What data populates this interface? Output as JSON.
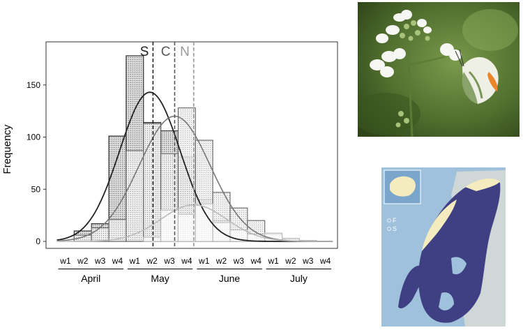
{
  "chart_data": {
    "type": "bar",
    "ylabel": "Frequency",
    "ylim": [
      0,
      180
    ],
    "yticks": [
      0,
      50,
      100,
      150
    ],
    "week_labels": [
      "w1",
      "w2",
      "w3",
      "w4",
      "w1",
      "w2",
      "w3",
      "w4",
      "w1",
      "w2",
      "w3",
      "w4",
      "w1",
      "w2",
      "w3",
      "w4"
    ],
    "months": [
      "April",
      "May",
      "June",
      "July"
    ],
    "series": [
      {
        "name": "S",
        "color": "#222222",
        "values": [
          0,
          10,
          17,
          101,
          178,
          114,
          106,
          81,
          40,
          20,
          9,
          3,
          1,
          0,
          0,
          0
        ],
        "fit": {
          "peak": 143,
          "mean": 5.37,
          "sd": 1.75
        }
      },
      {
        "name": "C",
        "color": "#777777",
        "values": [
          0,
          6,
          13,
          21,
          87,
          113,
          84,
          128,
          97,
          47,
          32,
          20,
          7,
          2,
          0,
          0
        ],
        "fit": {
          "peak": 120,
          "mean": 6.8,
          "sd": 2.05
        }
      },
      {
        "name": "N",
        "color": "#bbbbbb",
        "values": [
          0,
          0,
          0,
          0,
          0,
          4,
          30,
          26,
          36,
          18,
          11,
          7,
          8,
          3,
          1,
          0
        ],
        "fit": {
          "peak": 35,
          "mean": 7.9,
          "sd": 1.9
        }
      }
    ],
    "means": [
      {
        "label": "S",
        "week_index": 5.55,
        "color": "#222222"
      },
      {
        "label": "C",
        "week_index": 6.8,
        "color": "#555555"
      },
      {
        "label": "N",
        "week_index": 7.9,
        "color": "#999999"
      }
    ]
  },
  "map": {
    "legend": [
      "F",
      "S"
    ]
  }
}
